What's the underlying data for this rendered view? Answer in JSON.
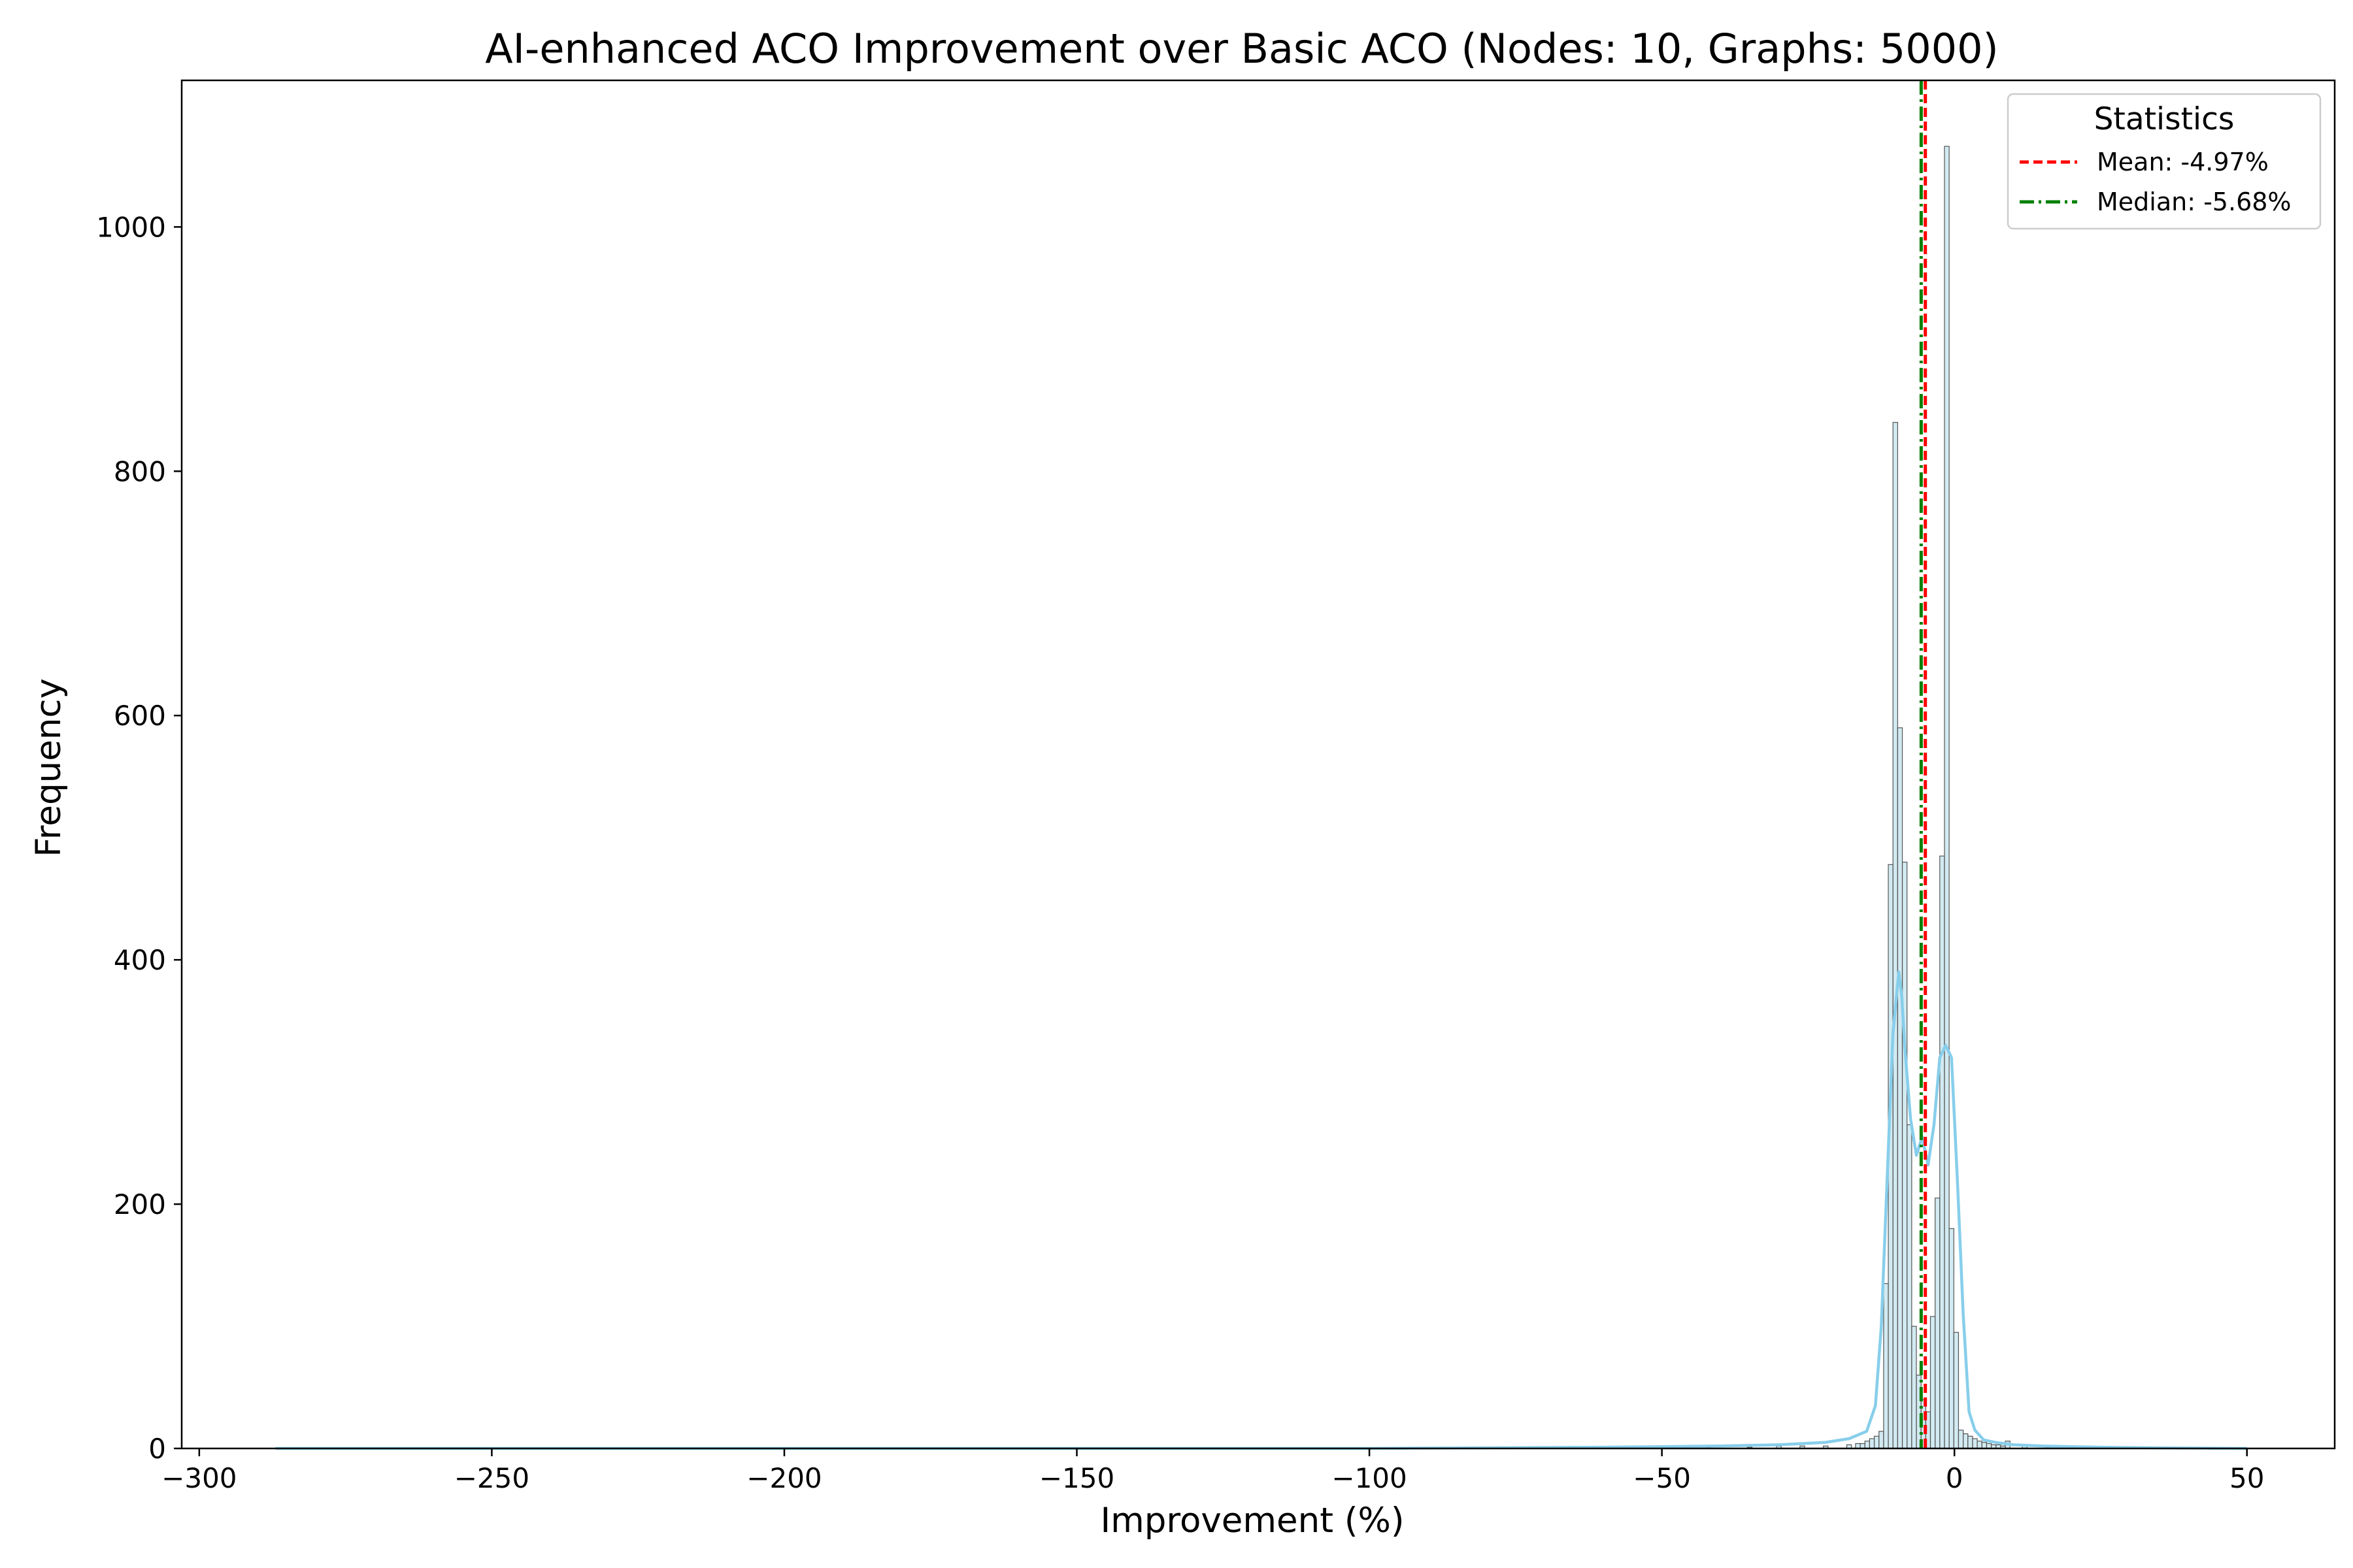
{
  "chart_data": {
    "type": "bar",
    "title": "AI-enhanced ACO Improvement over Basic ACO (Nodes: 10, Graphs: 5000)",
    "xlabel": "Improvement (%)",
    "ylabel": "Frequency",
    "xlim": [
      -303,
      65
    ],
    "ylim": [
      0,
      1120
    ],
    "x_ticks": [
      -300,
      -250,
      -200,
      -150,
      -100,
      -50,
      0,
      50
    ],
    "x_tick_labels": [
      "−300",
      "−250",
      "−200",
      "−150",
      "−100",
      "−50",
      "0",
      "50"
    ],
    "y_ticks": [
      0,
      200,
      400,
      600,
      800,
      1000
    ],
    "y_tick_labels": [
      "0",
      "200",
      "400",
      "600",
      "800",
      "1000"
    ],
    "grid": false,
    "bar_color": "#add8e6",
    "bar_edge_color": "#555555",
    "kde_color": "#87ceeb",
    "histogram": {
      "bins": [
        {
          "x": -42.0,
          "value": 1
        },
        {
          "x": -35.0,
          "value": 1
        },
        {
          "x": -30.0,
          "value": 2
        },
        {
          "x": -26.0,
          "value": 2
        },
        {
          "x": -22.0,
          "value": 2
        },
        {
          "x": -18.0,
          "value": 3
        },
        {
          "x": -16.5,
          "value": 4
        },
        {
          "x": -15.7,
          "value": 4
        },
        {
          "x": -14.9,
          "value": 6
        },
        {
          "x": -14.1,
          "value": 8
        },
        {
          "x": -13.3,
          "value": 10
        },
        {
          "x": -12.5,
          "value": 14
        },
        {
          "x": -11.7,
          "value": 135
        },
        {
          "x": -10.9,
          "value": 478
        },
        {
          "x": -10.1,
          "value": 840
        },
        {
          "x": -9.3,
          "value": 590
        },
        {
          "x": -8.5,
          "value": 480
        },
        {
          "x": -7.7,
          "value": 265
        },
        {
          "x": -6.9,
          "value": 100
        },
        {
          "x": -6.1,
          "value": 60
        },
        {
          "x": -5.3,
          "value": 40
        },
        {
          "x": -4.5,
          "value": 30
        },
        {
          "x": -3.7,
          "value": 108
        },
        {
          "x": -2.9,
          "value": 205
        },
        {
          "x": -2.1,
          "value": 485
        },
        {
          "x": -1.3,
          "value": 1066
        },
        {
          "x": -0.5,
          "value": 180
        },
        {
          "x": 0.3,
          "value": 95
        },
        {
          "x": 1.1,
          "value": 15
        },
        {
          "x": 1.9,
          "value": 12
        },
        {
          "x": 2.7,
          "value": 10
        },
        {
          "x": 3.5,
          "value": 8
        },
        {
          "x": 4.3,
          "value": 6
        },
        {
          "x": 5.1,
          "value": 5
        },
        {
          "x": 5.9,
          "value": 4
        },
        {
          "x": 6.7,
          "value": 3
        },
        {
          "x": 7.5,
          "value": 3
        },
        {
          "x": 8.3,
          "value": 2
        },
        {
          "x": 9.1,
          "value": 6
        },
        {
          "x": 12.0,
          "value": 2
        },
        {
          "x": 16.0,
          "value": 1
        },
        {
          "x": 22.0,
          "value": 1
        }
      ]
    },
    "kde": {
      "x": [
        -287,
        -200,
        -100,
        -60,
        -40,
        -30,
        -22,
        -18,
        -15,
        -13.5,
        -12.5,
        -11.5,
        -10.5,
        -9.5,
        -9,
        -8.5,
        -7.5,
        -6.5,
        -5.5,
        -4.5,
        -3.5,
        -2.5,
        -1.5,
        -0.5,
        0.5,
        1.5,
        2.5,
        3.5,
        5,
        7,
        10,
        15,
        25,
        35,
        50
      ],
      "y": [
        0,
        0,
        0,
        1,
        2,
        3,
        5,
        8,
        14,
        35,
        100,
        220,
        340,
        390,
        370,
        330,
        270,
        240,
        255,
        232,
        265,
        320,
        330,
        320,
        220,
        110,
        30,
        15,
        7,
        5,
        3,
        2,
        1,
        0.5,
        0
      ]
    },
    "reference_lines": [
      {
        "name": "Mean: -4.97%",
        "x": -4.97,
        "color": "#ff0000",
        "style": "dashed"
      },
      {
        "name": "Median: -5.68%",
        "x": -5.68,
        "color": "#008000",
        "style": "dashdot"
      }
    ],
    "legend": {
      "title": "Statistics",
      "placement": "top-right"
    }
  }
}
